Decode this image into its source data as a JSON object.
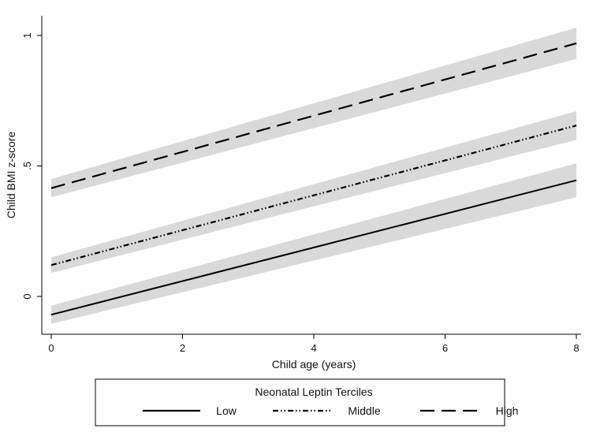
{
  "chart_data": {
    "type": "line",
    "title": "",
    "xlabel": "Child age (years)",
    "ylabel": "Child BMI z-score",
    "xlim": [
      0,
      8
    ],
    "ylim": [
      -0.15,
      1.05
    ],
    "x_ticks": [
      0,
      2,
      4,
      6,
      8
    ],
    "x_tick_labels": [
      "0",
      "2",
      "4",
      "6",
      "8"
    ],
    "y_ticks": [
      0,
      0.5,
      1
    ],
    "y_tick_labels": [
      "0",
      ".5",
      "1"
    ],
    "grid": false,
    "legend": {
      "title": "Neonatal Leptin Terciles",
      "placement": "bottom"
    },
    "band_color": "#d9d9d9",
    "line_color": "#000000",
    "series": [
      {
        "name": "Low",
        "style": "solid",
        "x": [
          0,
          8
        ],
        "y": [
          -0.07,
          0.445
        ],
        "ci_lower": [
          -0.105,
          0.38
        ],
        "ci_upper": [
          -0.035,
          0.51
        ]
      },
      {
        "name": "Middle",
        "style": "dash-dot-dot",
        "x": [
          0,
          8
        ],
        "y": [
          0.12,
          0.655
        ],
        "ci_lower": [
          0.09,
          0.6
        ],
        "ci_upper": [
          0.15,
          0.71
        ]
      },
      {
        "name": "High",
        "style": "long-dash",
        "x": [
          0,
          8
        ],
        "y": [
          0.415,
          0.97
        ],
        "ci_lower": [
          0.38,
          0.91
        ],
        "ci_upper": [
          0.45,
          1.03
        ]
      }
    ]
  }
}
